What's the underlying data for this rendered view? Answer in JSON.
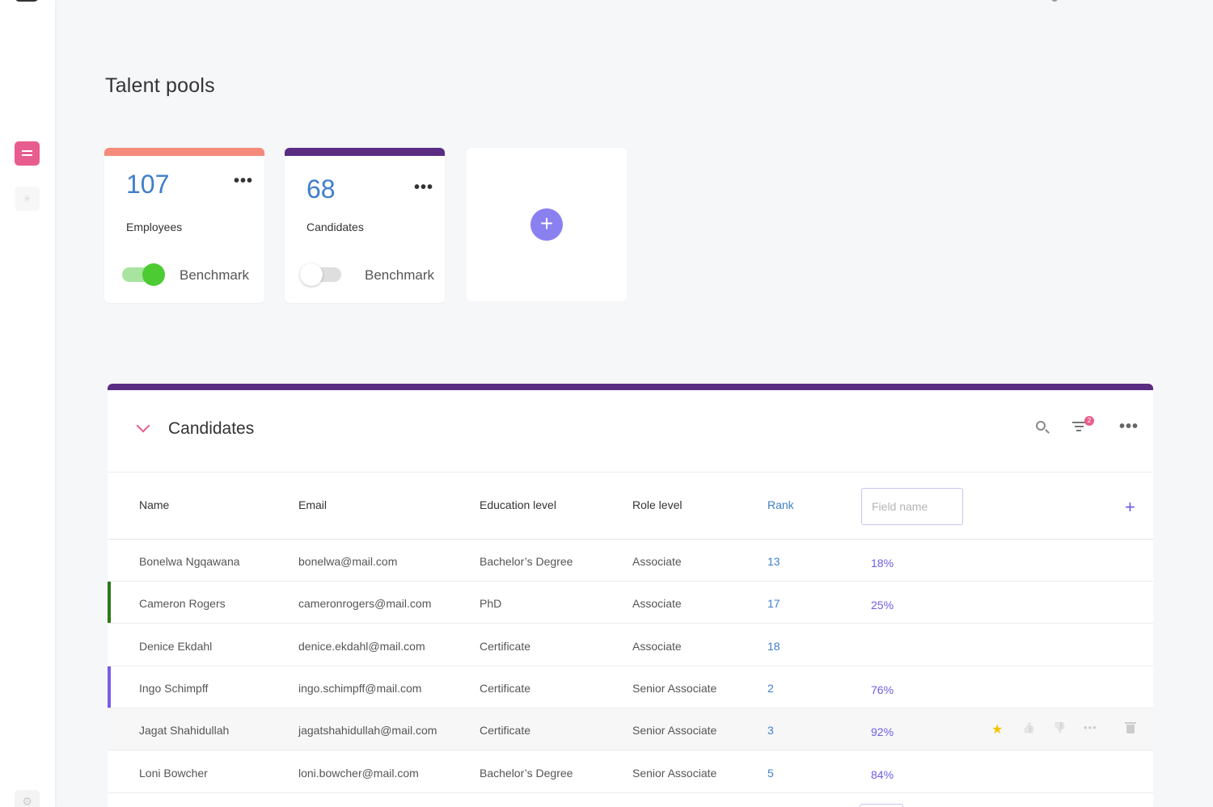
{
  "page": {
    "title": "Talent pools"
  },
  "pools": [
    {
      "count": "107",
      "label": "Employees",
      "benchmark_label": "Benchmark",
      "benchmark_on": true,
      "color": "#f58a7a"
    },
    {
      "count": "68",
      "label": "Candidates",
      "benchmark_label": "Benchmark",
      "benchmark_on": false,
      "color": "#5a2d82"
    }
  ],
  "add_pool": {
    "icon": "plus-icon",
    "glyph": "+"
  },
  "panel": {
    "title": "Candidates",
    "filter_count": "2",
    "more_glyph": "•••",
    "columns": {
      "name": "Name",
      "email": "Email",
      "education": "Education level",
      "role": "Role level",
      "rank": "Rank"
    },
    "field_placeholder": "Field name",
    "add_column_glyph": "+",
    "rows": [
      {
        "name": "Bonelwa Ngqawana",
        "email": "bonelwa@mail.com",
        "education": "Bachelor’s Degree",
        "role": "Associate",
        "rank": "13",
        "pct": "18%",
        "accent": ""
      },
      {
        "name": "Cameron Rogers",
        "email": "cameronrogers@mail.com",
        "education": "PhD",
        "role": "Associate",
        "rank": "17",
        "pct": "25%",
        "accent": "#2c7a1a"
      },
      {
        "name": "Denice Ekdahl",
        "email": "denice.ekdahl@mail.com",
        "education": "Certificate",
        "role": "Associate",
        "rank": "18",
        "pct": "",
        "accent": ""
      },
      {
        "name": "Ingo Schimpff",
        "email": "ingo.schimpff@mail.com",
        "education": "Certificate",
        "role": "Senior Associate",
        "rank": "2",
        "pct": "76%",
        "accent": "#7b5ce8"
      },
      {
        "name": "Jagat Shahidullah",
        "email": "jagatshahidullah@mail.com",
        "education": "Certificate",
        "role": "Senior Associate",
        "rank": "3",
        "pct": "92%",
        "accent": "",
        "hover": true
      },
      {
        "name": "Loni Bowcher",
        "email": "loni.bowcher@mail.com",
        "education": "Bachelor’s Degree",
        "role": "Senior Associate",
        "rank": "5",
        "pct": "84%",
        "accent": ""
      }
    ],
    "row_actions": {
      "star": "★",
      "like": "👍",
      "dislike": "👎",
      "more": "•••"
    }
  },
  "colors": {
    "accent_pink": "#e85d8e",
    "purple": "#5a2d82",
    "blue": "#3f7fc9",
    "violet": "#6b5ce7"
  }
}
